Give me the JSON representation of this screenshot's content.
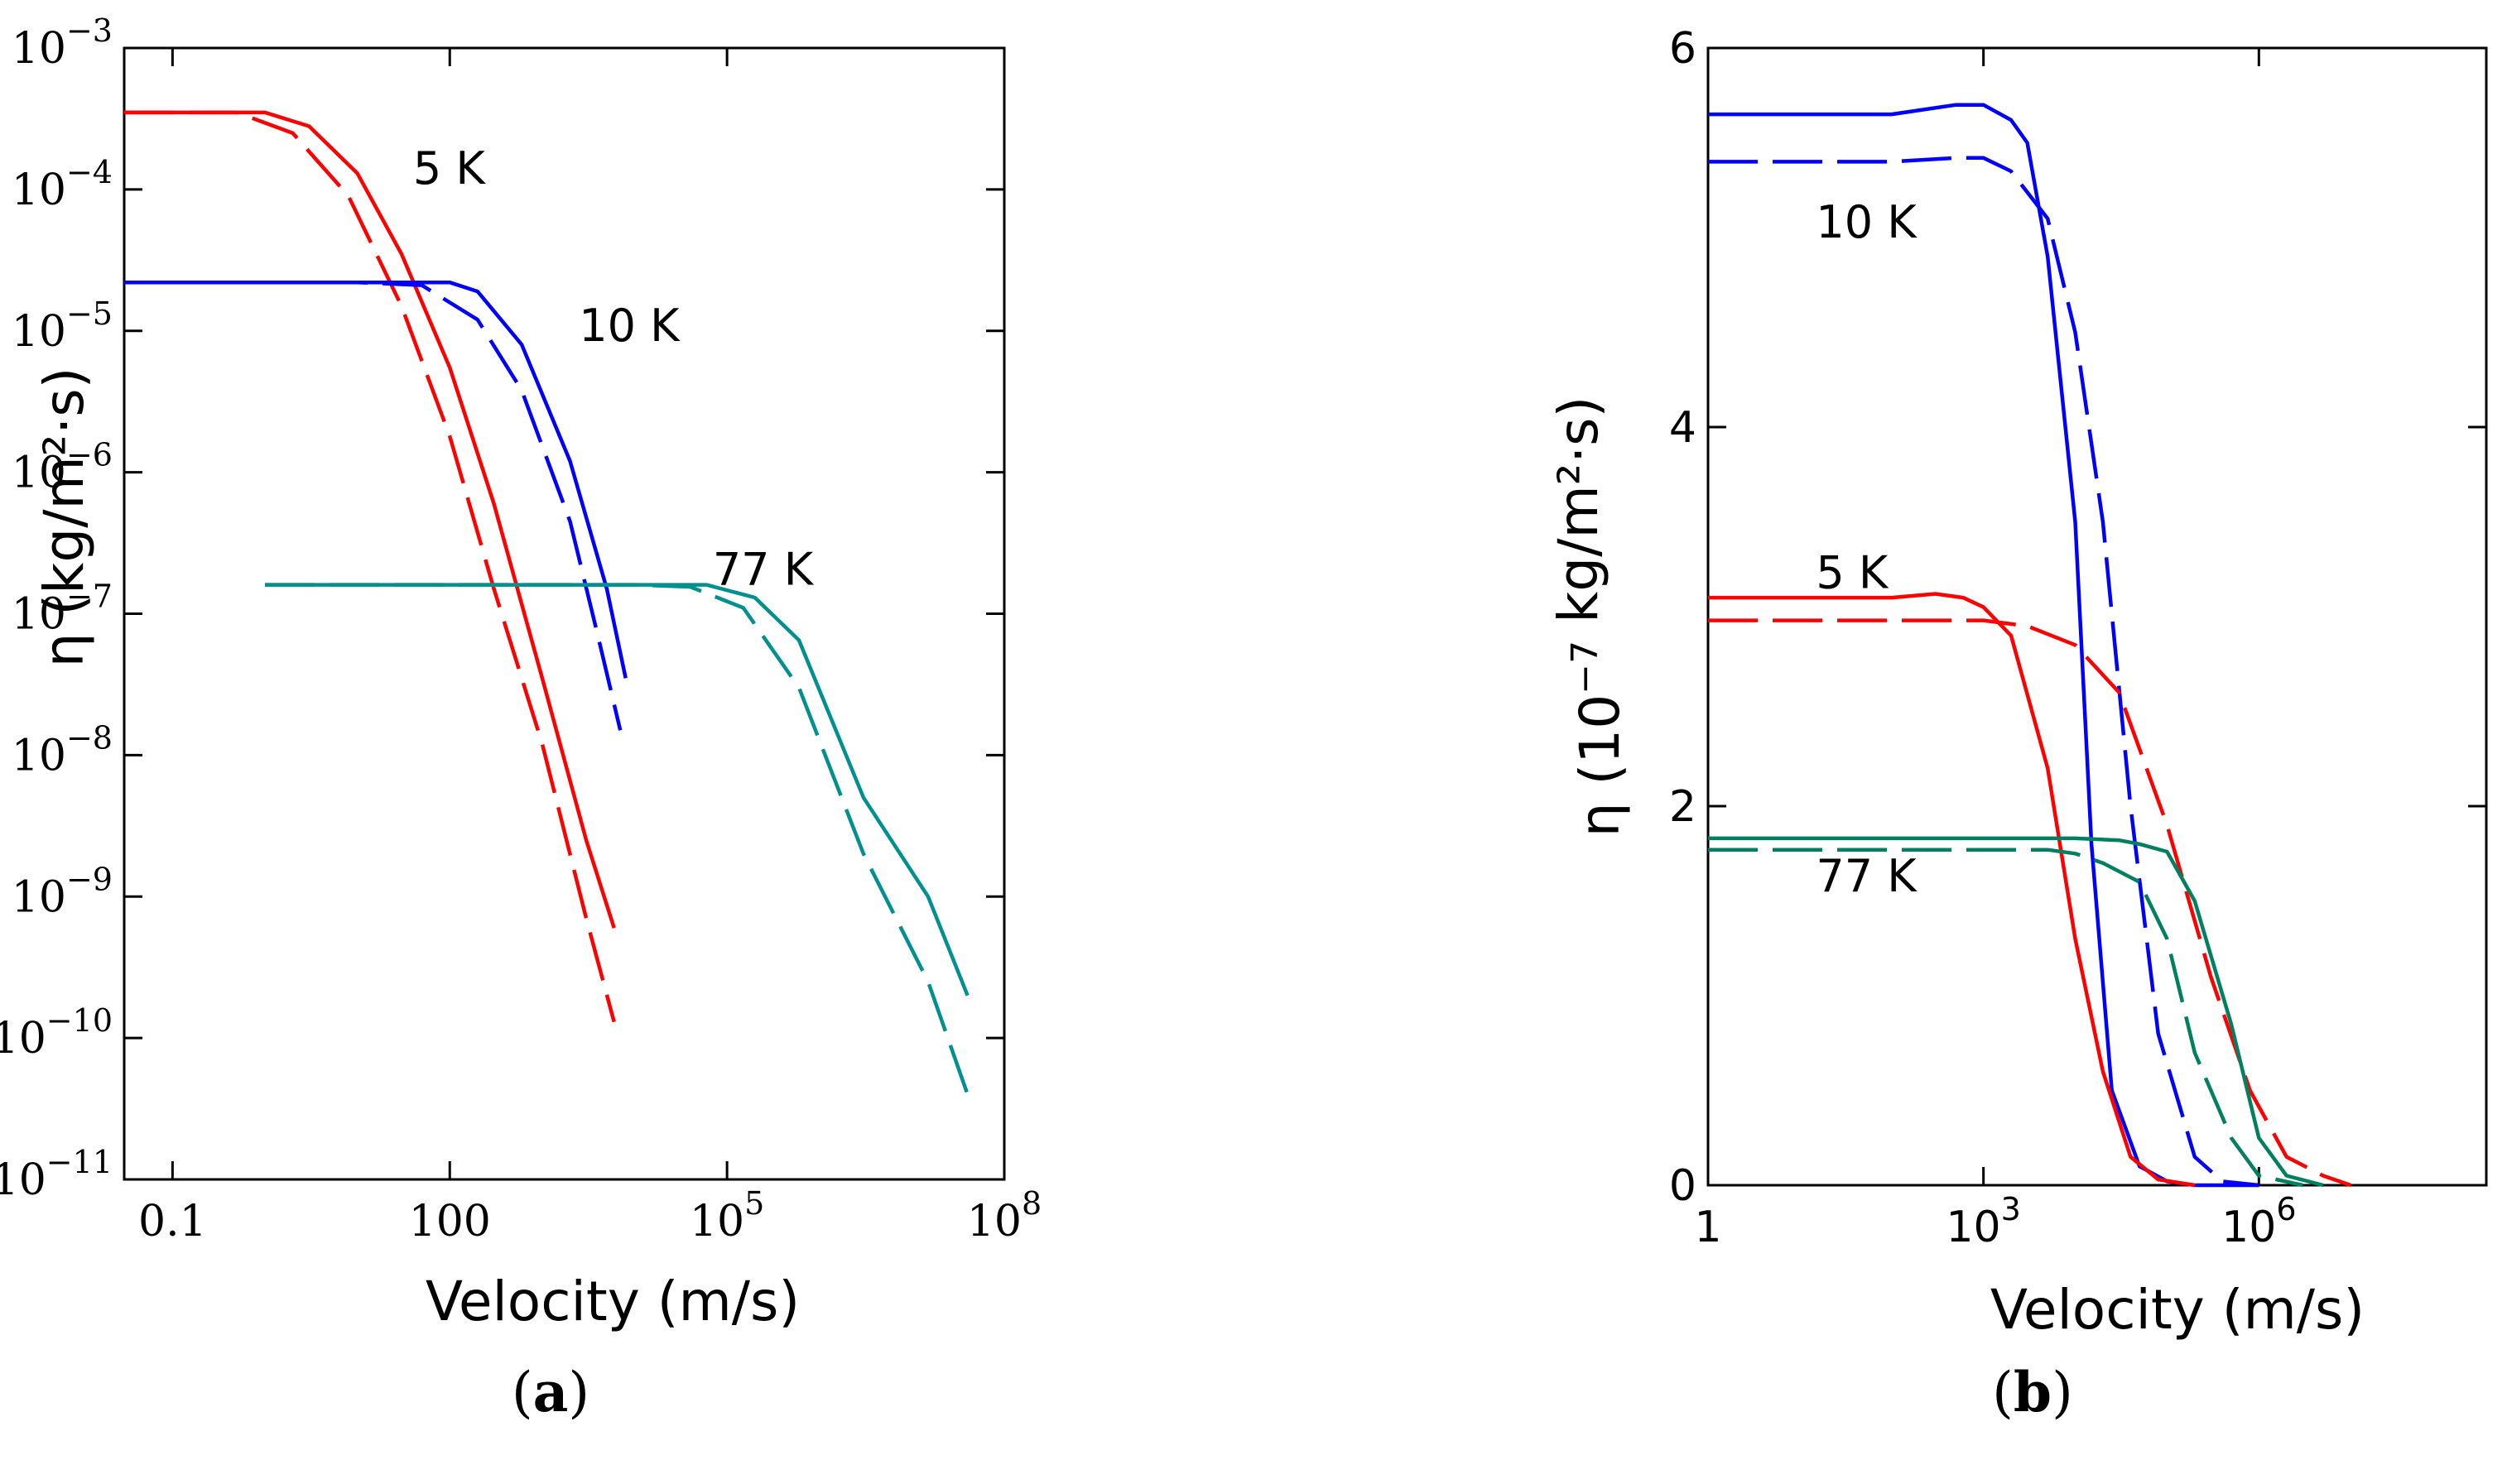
{
  "chart_data": [
    {
      "panel": "a",
      "caption": "a",
      "type": "line",
      "xscale": "log",
      "yscale": "log",
      "xlabel": "Velocity (m/s)",
      "ylabel": "η (kg/m²·s)",
      "xlim": [
        0.03,
        100000000
      ],
      "ylim": [
        1e-11,
        0.001
      ],
      "xticks": [
        {
          "v": 0.1,
          "label": "0.1"
        },
        {
          "v": 100,
          "label": "100"
        },
        {
          "v": 100000,
          "label": "10^5"
        },
        {
          "v": 100000000,
          "label": "10^8"
        }
      ],
      "yticks": [
        {
          "v": 0.001,
          "label": "10^-3"
        },
        {
          "v": 0.0001,
          "label": "10^-4"
        },
        {
          "v": 1e-05,
          "label": "10^-5"
        },
        {
          "v": 1e-06,
          "label": "10^-6"
        },
        {
          "v": 1e-07,
          "label": "10^-7"
        },
        {
          "v": 1e-08,
          "label": "10^-8"
        },
        {
          "v": 1e-09,
          "label": "10^-9"
        },
        {
          "v": 1e-10,
          "label": "10^-10"
        },
        {
          "v": 1e-11,
          "label": "10^-11"
        }
      ],
      "annotations": [
        {
          "text": "5 K",
          "x": 40,
          "y": 0.00011
        },
        {
          "text": "10 K",
          "x": 2500,
          "y": 8.5e-06
        },
        {
          "text": "77 K",
          "x": 70000,
          "y": 1.6e-07
        }
      ],
      "series": [
        {
          "name": "5 K solid",
          "color": "#ff0000",
          "dash": false,
          "x": [
            0.03,
            1,
            3,
            10,
            30,
            100,
            300,
            1000,
            3000,
            6000
          ],
          "y": [
            0.00035,
            0.00035,
            0.00028,
            0.00013,
            3.5e-05,
            5.5e-06,
            6e-07,
            3.5e-08,
            2.5e-09,
            6e-10
          ]
        },
        {
          "name": "5 K dashed",
          "color": "#ff0000",
          "dash": true,
          "x": [
            0.03,
            0.5,
            2,
            8,
            30,
            100,
            300,
            1000,
            3000,
            6000
          ],
          "y": [
            0.00035,
            0.00035,
            0.00025,
            9e-05,
            1.5e-05,
            1.8e-06,
            1.5e-07,
            1.2e-08,
            7e-10,
            1.3e-10
          ]
        },
        {
          "name": "10 K solid",
          "color": "#0000ff",
          "dash": false,
          "x": [
            0.03,
            10,
            100,
            200,
            600,
            2000,
            5000,
            8000
          ],
          "y": [
            2.2e-05,
            2.2e-05,
            2.2e-05,
            1.9e-05,
            8e-06,
            1.2e-06,
            1.5e-07,
            3.5e-08
          ]
        },
        {
          "name": "10 K dashed",
          "color": "#0000ff",
          "dash": true,
          "x": [
            0.03,
            10,
            50,
            200,
            600,
            2000,
            4000,
            7000
          ],
          "y": [
            2.2e-05,
            2.2e-05,
            2.1e-05,
            1.2e-05,
            3.8e-06,
            4.5e-07,
            7e-08,
            1.5e-08
          ]
        },
        {
          "name": "77 K solid",
          "color": "#009090",
          "dash": false,
          "x": [
            1,
            100,
            10000,
            60000,
            200000,
            600000,
            3000000,
            15000000,
            40000000
          ],
          "y": [
            1.6e-07,
            1.6e-07,
            1.6e-07,
            1.6e-07,
            1.3e-07,
            6.5e-08,
            5e-09,
            1e-09,
            2e-10
          ]
        },
        {
          "name": "77 K dashed",
          "color": "#009090",
          "dash": true,
          "x": [
            1,
            100,
            10000,
            40000,
            150000,
            600000,
            3000000,
            15000000,
            40000000
          ],
          "y": [
            1.6e-07,
            1.6e-07,
            1.6e-07,
            1.55e-07,
            1.1e-07,
            3e-08,
            2e-09,
            2.5e-10,
            4e-11
          ]
        }
      ]
    },
    {
      "panel": "b",
      "caption": "b",
      "type": "line",
      "xscale": "log",
      "yscale": "linear",
      "xlabel": "Velocity (m/s)",
      "ylabel": "η (10^-7 kg/m²·s)",
      "xlim": [
        1,
        300000000
      ],
      "ylim": [
        0,
        6
      ],
      "xticks": [
        {
          "v": 1,
          "label": "1"
        },
        {
          "v": 1000,
          "label": "10^3"
        },
        {
          "v": 1000000,
          "label": "10^6"
        }
      ],
      "yticks": [
        {
          "v": 0,
          "label": "0"
        },
        {
          "v": 2,
          "label": "2"
        },
        {
          "v": 4,
          "label": "4"
        },
        {
          "v": 6,
          "label": "6"
        }
      ],
      "annotations": [
        {
          "text": "10 K",
          "x": 15,
          "y": 5.0
        },
        {
          "text": "5 K",
          "x": 15,
          "y": 3.15
        },
        {
          "text": "77 K",
          "x": 15,
          "y": 1.55
        }
      ],
      "series": [
        {
          "name": "10 K solid",
          "color": "#0000ff",
          "dash": false,
          "x": [
            1,
            100,
            500,
            1000,
            2000,
            3000,
            5000,
            10000,
            15000,
            25000,
            50000,
            100000,
            200000,
            1000000
          ],
          "y": [
            5.65,
            5.65,
            5.7,
            5.7,
            5.62,
            5.5,
            4.9,
            3.5,
            1.8,
            0.5,
            0.1,
            0.02,
            0,
            0
          ]
        },
        {
          "name": "10 K dashed",
          "color": "#0000ff",
          "dash": true,
          "x": [
            1,
            100,
            500,
            1000,
            2000,
            5000,
            10000,
            20000,
            40000,
            80000,
            200000,
            400000,
            1000000
          ],
          "y": [
            5.4,
            5.4,
            5.42,
            5.42,
            5.35,
            5.1,
            4.5,
            3.5,
            2.0,
            0.8,
            0.15,
            0.02,
            0
          ]
        },
        {
          "name": "5 K solid",
          "color": "#ff0000",
          "dash": false,
          "x": [
            1,
            100,
            300,
            600,
            1000,
            2000,
            5000,
            10000,
            20000,
            40000,
            80000,
            200000
          ],
          "y": [
            3.1,
            3.1,
            3.12,
            3.1,
            3.05,
            2.9,
            2.2,
            1.3,
            0.6,
            0.15,
            0.03,
            0
          ]
        },
        {
          "name": "5 K dashed",
          "color": "#ff0000",
          "dash": true,
          "x": [
            1,
            100,
            1000,
            3000,
            10000,
            30000,
            100000,
            300000,
            800000,
            2000000,
            5000000,
            10000000
          ],
          "y": [
            2.98,
            2.98,
            2.98,
            2.95,
            2.85,
            2.6,
            1.9,
            1.1,
            0.5,
            0.15,
            0.05,
            0
          ]
        },
        {
          "name": "77 K solid",
          "color": "#008060",
          "dash": false,
          "x": [
            1,
            1000,
            10000,
            30000,
            50000,
            100000,
            200000,
            500000,
            1000000,
            2000000,
            5000000
          ],
          "y": [
            1.83,
            1.83,
            1.83,
            1.82,
            1.8,
            1.76,
            1.5,
            0.85,
            0.25,
            0.05,
            0
          ]
        },
        {
          "name": "77 K dashed",
          "color": "#008060",
          "dash": true,
          "x": [
            1,
            1000,
            5000,
            10000,
            20000,
            50000,
            100000,
            200000,
            500000,
            1000000,
            3000000
          ],
          "y": [
            1.77,
            1.77,
            1.77,
            1.75,
            1.7,
            1.6,
            1.3,
            0.7,
            0.25,
            0.05,
            0
          ]
        }
      ]
    }
  ]
}
